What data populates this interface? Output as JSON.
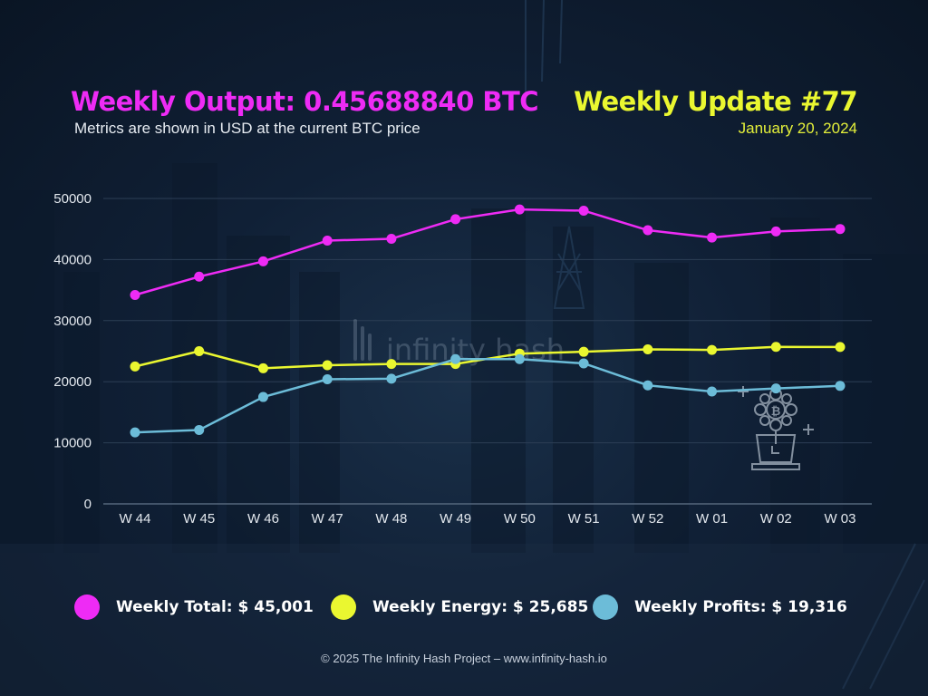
{
  "header": {
    "title": "Weekly Output: 0.45688840 BTC",
    "subtitle": "Metrics are shown in USD at the current BTC price",
    "update": "Weekly Update #77",
    "date": "January 20, 2024"
  },
  "watermark": {
    "text": "infinity hash"
  },
  "legend": [
    {
      "label": "Weekly Total: $ 45,001",
      "color": "#ee2bf5"
    },
    {
      "label": "Weekly Energy: $ 25,685",
      "color": "#eaf730"
    },
    {
      "label": "Weekly Profits: $ 19,316",
      "color": "#6cbcd8"
    }
  ],
  "chart_data": {
    "type": "line",
    "categories": [
      "W 44",
      "W 45",
      "W 46",
      "W 47",
      "W 48",
      "W 49",
      "W 50",
      "W 51",
      "W 52",
      "W 01",
      "W 02",
      "W 03"
    ],
    "yticks": [
      0,
      10000,
      20000,
      30000,
      40000,
      50000
    ],
    "ylim": [
      0,
      50000
    ],
    "grid": true,
    "series": [
      {
        "name": "Weekly Total",
        "color": "#ee2bf5",
        "values": [
          34200,
          37200,
          39700,
          43100,
          43400,
          46600,
          48200,
          48000,
          44800,
          43600,
          44600,
          45001
        ]
      },
      {
        "name": "Weekly Energy",
        "color": "#eaf730",
        "values": [
          22500,
          25000,
          22200,
          22700,
          22900,
          22900,
          24600,
          24900,
          25300,
          25200,
          25700,
          25685
        ]
      },
      {
        "name": "Weekly Profits",
        "color": "#6cbcd8",
        "values": [
          11700,
          12100,
          17500,
          20400,
          20500,
          23700,
          23700,
          23000,
          19400,
          18400,
          18900,
          19316
        ]
      }
    ]
  },
  "footer": {
    "text": "© 2025 The Infinity Hash Project – www.infinity-hash.io"
  }
}
